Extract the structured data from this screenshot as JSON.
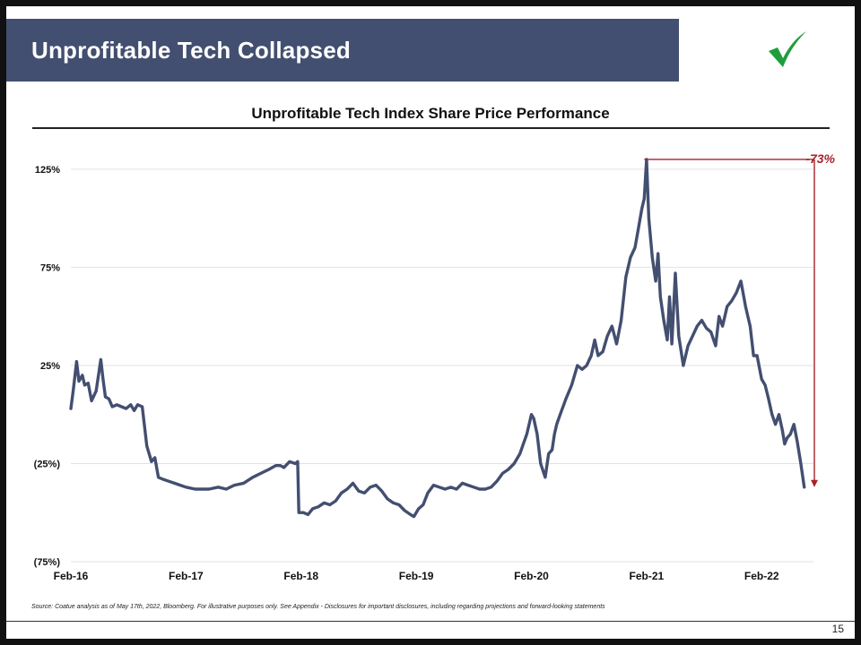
{
  "slide": {
    "banner_title": "Unprofitable Tech Collapsed",
    "check_icon": "checkmark-icon",
    "accent_color": "#434f70",
    "check_color": "#1e9e3c",
    "page_number": "15",
    "source": "Source: Coatue analysis as of May 17th, 2022, Bloomberg. For illustrative purposes only. See Appendix - Disclosures for important disclosures, including regarding projections and forward-looking statements"
  },
  "chart_data": {
    "type": "line",
    "title": "Unprofitable Tech Index Share Price Performance",
    "xlabel": "",
    "ylabel": "",
    "ylim": [
      -75,
      135
    ],
    "y_ticks": [
      125,
      75,
      25,
      -25,
      -75
    ],
    "y_tick_labels": [
      "125%",
      "75%",
      "25%",
      "(25%)",
      "(75%)"
    ],
    "x_tick_labels": [
      "Feb-16",
      "Feb-17",
      "Feb-18",
      "Feb-19",
      "Feb-20",
      "Feb-21",
      "Feb-22"
    ],
    "x_tick_years": [
      2016.0,
      2017.0,
      2018.0,
      2019.0,
      2020.0,
      2021.0,
      2022.0
    ],
    "xlim": [
      2016.0,
      2022.45
    ],
    "line_color": "#434f70",
    "annotation": {
      "label": "-73%",
      "color": "#a8232a",
      "from_x": 2020.98,
      "from_y": 130,
      "to_y": -37
    },
    "series": [
      {
        "name": "Unprofitable Tech Index",
        "x": [
          2016.0,
          2016.02,
          2016.05,
          2016.07,
          2016.1,
          2016.12,
          2016.15,
          2016.18,
          2016.22,
          2016.26,
          2016.28,
          2016.3,
          2016.33,
          2016.36,
          2016.4,
          2016.44,
          2016.48,
          2016.52,
          2016.55,
          2016.58,
          2016.62,
          2016.66,
          2016.7,
          2016.73,
          2016.76,
          2016.8,
          2016.85,
          2016.9,
          2016.95,
          2017.0,
          2017.08,
          2017.15,
          2017.2,
          2017.28,
          2017.35,
          2017.42,
          2017.5,
          2017.58,
          2017.65,
          2017.72,
          2017.78,
          2017.82,
          2017.85,
          2017.9,
          2017.95,
          2017.97,
          2017.98,
          2018.02,
          2018.06,
          2018.1,
          2018.15,
          2018.2,
          2018.25,
          2018.3,
          2018.35,
          2018.4,
          2018.45,
          2018.5,
          2018.55,
          2018.6,
          2018.65,
          2018.7,
          2018.75,
          2018.8,
          2018.85,
          2018.9,
          2018.95,
          2018.98,
          2019.02,
          2019.06,
          2019.1,
          2019.15,
          2019.2,
          2019.25,
          2019.3,
          2019.35,
          2019.4,
          2019.45,
          2019.5,
          2019.55,
          2019.6,
          2019.65,
          2019.7,
          2019.75,
          2019.8,
          2019.85,
          2019.9,
          2019.93,
          2019.96,
          2020.0,
          2020.02,
          2020.05,
          2020.08,
          2020.12,
          2020.15,
          2020.18,
          2020.2,
          2020.22,
          2020.25,
          2020.3,
          2020.35,
          2020.4,
          2020.44,
          2020.48,
          2020.52,
          2020.55,
          2020.58,
          2020.62,
          2020.66,
          2020.7,
          2020.74,
          2020.78,
          2020.82,
          2020.86,
          2020.9,
          2020.93,
          2020.96,
          2020.98,
          2021.0,
          2021.02,
          2021.05,
          2021.08,
          2021.1,
          2021.12,
          2021.15,
          2021.18,
          2021.2,
          2021.22,
          2021.25,
          2021.28,
          2021.32,
          2021.36,
          2021.4,
          2021.44,
          2021.48,
          2021.52,
          2021.56,
          2021.6,
          2021.63,
          2021.66,
          2021.7,
          2021.74,
          2021.78,
          2021.82,
          2021.86,
          2021.9,
          2021.93,
          2021.96,
          2022.0,
          2022.03,
          2022.06,
          2022.09,
          2022.12,
          2022.15,
          2022.18,
          2022.2,
          2022.22,
          2022.25,
          2022.28,
          2022.31,
          2022.34,
          2022.37
        ],
        "y": [
          3,
          12,
          27,
          17,
          20,
          15,
          16,
          7,
          12,
          28,
          18,
          9,
          8,
          4,
          5,
          4,
          3,
          5,
          2,
          5,
          4,
          -16,
          -24,
          -22,
          -32,
          -33,
          -34,
          -35,
          -36,
          -37,
          -38,
          -38,
          -38,
          -37,
          -38,
          -36,
          -35,
          -32,
          -30,
          -28,
          -26,
          -26,
          -27,
          -24,
          -25,
          -24,
          -50,
          -50,
          -51,
          -48,
          -47,
          -45,
          -46,
          -44,
          -40,
          -38,
          -35,
          -39,
          -40,
          -37,
          -36,
          -39,
          -43,
          -45,
          -46,
          -49,
          -51,
          -52,
          -48,
          -46,
          -40,
          -36,
          -37,
          -38,
          -37,
          -38,
          -35,
          -36,
          -37,
          -38,
          -38,
          -37,
          -34,
          -30,
          -28,
          -25,
          -20,
          -15,
          -10,
          0,
          -2,
          -10,
          -25,
          -32,
          -20,
          -18,
          -10,
          -5,
          0,
          8,
          15,
          25,
          23,
          25,
          30,
          38,
          30,
          32,
          40,
          45,
          36,
          48,
          70,
          80,
          85,
          95,
          105,
          110,
          130,
          100,
          80,
          68,
          82,
          60,
          48,
          38,
          60,
          36,
          72,
          40,
          25,
          35,
          40,
          45,
          48,
          44,
          42,
          35,
          50,
          45,
          55,
          58,
          62,
          68,
          55,
          45,
          30,
          30,
          18,
          15,
          8,
          0,
          -5,
          0,
          -8,
          -15,
          -12,
          -10,
          -5,
          -14,
          -25,
          -37
        ]
      }
    ]
  }
}
